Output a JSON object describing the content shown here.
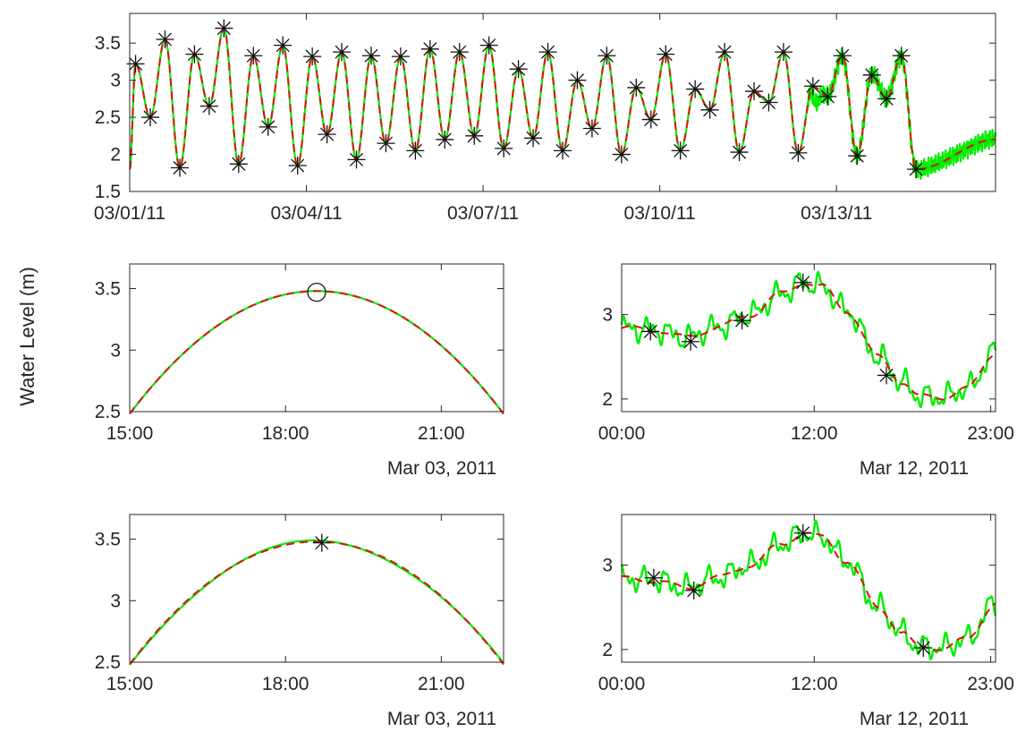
{
  "figure": {
    "ylabel": "Water Level (m)"
  },
  "colors": {
    "measured": "#00ee00",
    "fitted": "#dd1111",
    "axis": "#262626",
    "marker": "#111111"
  },
  "chart_data": [
    {
      "id": "top",
      "type": "line",
      "xticks": [
        "03/01/11",
        "03/04/11",
        "03/07/11",
        "03/10/11",
        "03/13/11"
      ],
      "yticks": [
        "1.5",
        "2",
        "2.5",
        "3",
        "3.5"
      ],
      "xlim_days": [
        0,
        14.7
      ],
      "ylim": [
        1.5,
        3.9
      ],
      "noise_window_days": [
        11.5,
        14.7
      ],
      "extrema_marker": "asterisk",
      "extrema": [
        [
          0.1,
          3.22
        ],
        [
          0.35,
          2.5
        ],
        [
          0.6,
          3.55
        ],
        [
          0.85,
          1.82
        ],
        [
          1.1,
          3.35
        ],
        [
          1.35,
          2.65
        ],
        [
          1.6,
          3.7
        ],
        [
          1.85,
          1.87
        ],
        [
          2.1,
          3.33
        ],
        [
          2.35,
          2.37
        ],
        [
          2.6,
          3.47
        ],
        [
          2.85,
          1.85
        ],
        [
          3.1,
          3.32
        ],
        [
          3.35,
          2.27
        ],
        [
          3.6,
          3.38
        ],
        [
          3.85,
          1.93
        ],
        [
          4.1,
          3.33
        ],
        [
          4.35,
          2.15
        ],
        [
          4.6,
          3.32
        ],
        [
          4.85,
          2.05
        ],
        [
          5.1,
          3.42
        ],
        [
          5.35,
          2.2
        ],
        [
          5.6,
          3.38
        ],
        [
          5.85,
          2.25
        ],
        [
          6.1,
          3.47
        ],
        [
          6.35,
          2.08
        ],
        [
          6.6,
          3.15
        ],
        [
          6.85,
          2.22
        ],
        [
          7.1,
          3.38
        ],
        [
          7.35,
          2.05
        ],
        [
          7.6,
          3.0
        ],
        [
          7.85,
          2.35
        ],
        [
          8.1,
          3.33
        ],
        [
          8.35,
          2.0
        ],
        [
          8.6,
          2.9
        ],
        [
          8.85,
          2.47
        ],
        [
          9.1,
          3.35
        ],
        [
          9.35,
          2.05
        ],
        [
          9.6,
          2.88
        ],
        [
          9.85,
          2.6
        ],
        [
          10.1,
          3.38
        ],
        [
          10.35,
          2.03
        ],
        [
          10.6,
          2.85
        ],
        [
          10.85,
          2.7
        ],
        [
          11.1,
          3.38
        ],
        [
          11.35,
          2.02
        ],
        [
          11.6,
          2.92
        ],
        [
          11.85,
          2.78
        ],
        [
          12.1,
          3.33
        ],
        [
          12.35,
          1.98
        ],
        [
          12.6,
          3.07
        ],
        [
          12.85,
          2.75
        ],
        [
          13.1,
          3.33
        ],
        [
          13.35,
          1.8
        ]
      ]
    },
    {
      "id": "mid-left",
      "type": "line",
      "xticks": [
        "15:00",
        "18:00",
        "21:00"
      ],
      "date_label": "Mar 03, 2011",
      "yticks": [
        "2.5",
        "3",
        "3.5"
      ],
      "xlim_hours": [
        15,
        22.2
      ],
      "ylim": [
        2.5,
        3.7
      ],
      "peak": [
        18.6,
        3.48
      ],
      "curvature": 0.077,
      "extrema_marker": "circle",
      "extrema": [
        [
          18.6,
          3.47
        ]
      ]
    },
    {
      "id": "mid-right",
      "type": "line",
      "xticks": [
        "00:00",
        "12:00",
        "23:00"
      ],
      "date_label": "Mar 12, 2011",
      "yticks": [
        "2",
        "3"
      ],
      "xlim_hours": [
        0,
        23.3
      ],
      "ylim": [
        1.85,
        3.6
      ],
      "trend": [
        [
          0,
          2.84
        ],
        [
          2,
          2.82
        ],
        [
          4,
          2.73
        ],
        [
          6,
          2.85
        ],
        [
          8,
          3.0
        ],
        [
          10,
          3.25
        ],
        [
          11.3,
          3.38
        ],
        [
          12.5,
          3.33
        ],
        [
          14,
          3.05
        ],
        [
          16,
          2.5
        ],
        [
          17.5,
          2.2
        ],
        [
          18.5,
          2.03
        ],
        [
          20,
          2.02
        ],
        [
          21.5,
          2.12
        ],
        [
          23.3,
          2.55
        ]
      ],
      "extrema_marker": "asterisk",
      "extrema": [
        [
          1.8,
          2.8
        ],
        [
          4.3,
          2.68
        ],
        [
          7.5,
          2.93
        ],
        [
          11.3,
          3.38
        ],
        [
          16.5,
          2.28
        ]
      ]
    },
    {
      "id": "bot-left",
      "type": "line",
      "xticks": [
        "15:00",
        "18:00",
        "21:00"
      ],
      "date_label": "Mar 03, 2011",
      "yticks": [
        "2.5",
        "3",
        "3.5"
      ],
      "xlim_hours": [
        15,
        22.2
      ],
      "ylim": [
        2.5,
        3.7
      ],
      "peak": [
        18.6,
        3.48
      ],
      "curvature": 0.077,
      "extrema_marker": "asterisk",
      "extrema": [
        [
          18.7,
          3.47
        ]
      ]
    },
    {
      "id": "bot-right",
      "type": "line",
      "xticks": [
        "00:00",
        "12:00",
        "23:00"
      ],
      "date_label": "Mar 12, 2011",
      "yticks": [
        "2",
        "3"
      ],
      "xlim_hours": [
        0,
        23.3
      ],
      "ylim": [
        1.85,
        3.6
      ],
      "trend": [
        [
          0,
          2.84
        ],
        [
          2,
          2.82
        ],
        [
          4,
          2.73
        ],
        [
          6,
          2.85
        ],
        [
          8,
          3.0
        ],
        [
          10,
          3.25
        ],
        [
          11.3,
          3.38
        ],
        [
          12.5,
          3.33
        ],
        [
          14,
          3.05
        ],
        [
          16,
          2.5
        ],
        [
          17.5,
          2.2
        ],
        [
          18.5,
          2.03
        ],
        [
          20,
          2.02
        ],
        [
          21.5,
          2.12
        ],
        [
          23.3,
          2.55
        ]
      ],
      "extrema_marker": "asterisk",
      "extrema": [
        [
          2,
          2.85
        ],
        [
          4.5,
          2.7
        ],
        [
          11.3,
          3.38
        ],
        [
          18.8,
          2.02
        ]
      ]
    }
  ]
}
